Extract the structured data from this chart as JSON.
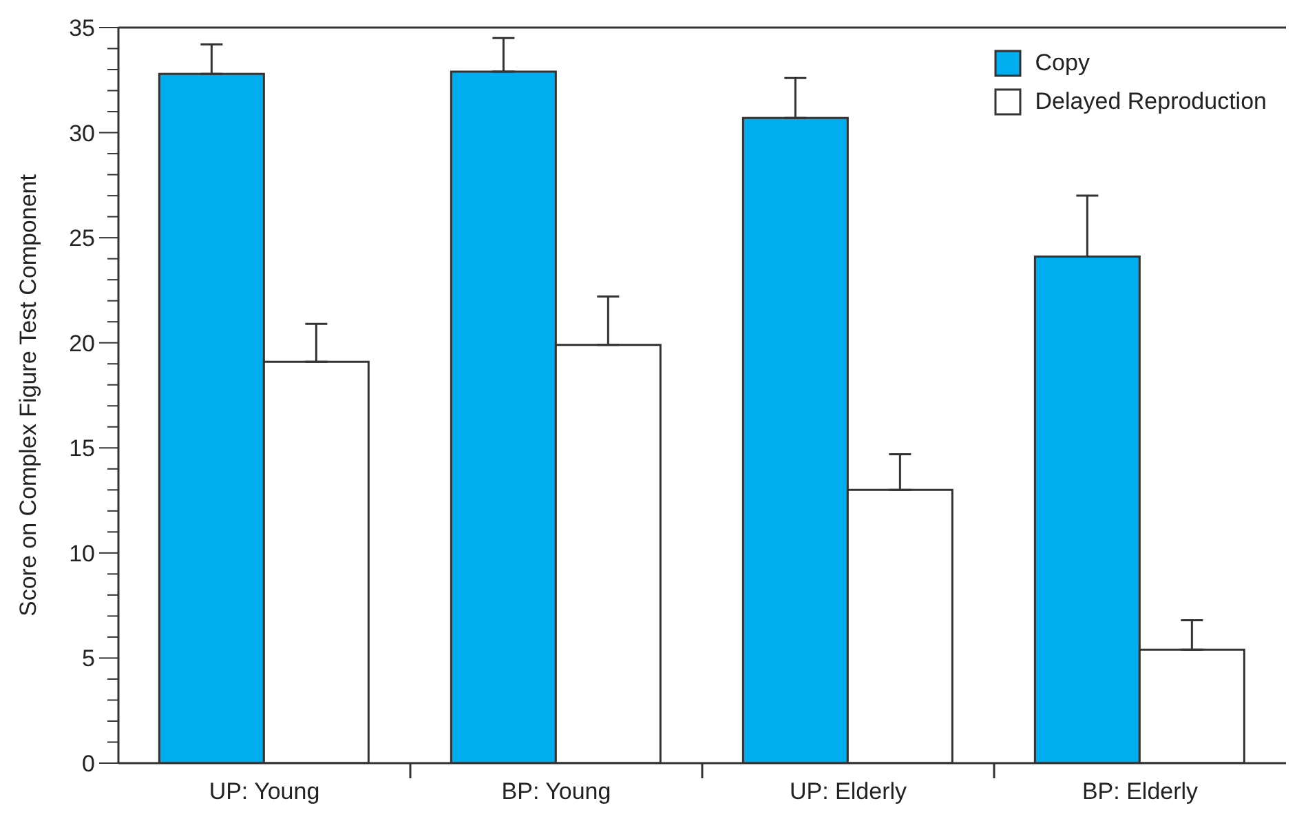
{
  "chart_data": {
    "type": "bar",
    "ylabel": "Score on Complex Figure Test Component",
    "categories": [
      "UP: Young",
      "BP: Young",
      "UP: Elderly",
      "BP: Elderly"
    ],
    "series": [
      {
        "name": "Copy",
        "color": "#00aeef",
        "values": [
          32.8,
          32.9,
          30.7,
          24.1
        ],
        "errors": [
          1.4,
          1.6,
          1.9,
          2.9
        ]
      },
      {
        "name": "Delayed Reproduction",
        "color": "#ffffff",
        "values": [
          19.1,
          19.9,
          13.0,
          5.4
        ],
        "errors": [
          1.8,
          2.3,
          1.7,
          1.4
        ]
      }
    ],
    "ylim": [
      0,
      35
    ],
    "yticks": [
      0,
      {
        "value": 1,
        "label": null
      },
      {
        "value": 2,
        "label": null
      },
      {
        "value": 3,
        "label": null
      },
      {
        "value": 4,
        "label": null
      },
      5,
      {
        "value": 6,
        "label": null
      },
      {
        "value": 7,
        "label": null
      },
      {
        "value": 8,
        "label": null
      },
      {
        "value": 9,
        "label": null
      },
      10,
      {
        "value": 11,
        "label": null
      },
      {
        "value": 12,
        "label": null
      },
      {
        "value": 13,
        "label": null
      },
      {
        "value": 14,
        "label": null
      },
      15,
      {
        "value": 16,
        "label": null
      },
      {
        "value": 17,
        "label": null
      },
      {
        "value": 18,
        "label": null
      },
      {
        "value": 19,
        "label": null
      },
      20,
      {
        "value": 21,
        "label": null
      },
      {
        "value": 22,
        "label": null
      },
      {
        "value": 23,
        "label": null
      },
      {
        "value": 24,
        "label": null
      },
      25,
      {
        "value": 26,
        "label": null
      },
      {
        "value": 27,
        "label": null
      },
      {
        "value": 28,
        "label": null
      },
      {
        "value": 29,
        "label": null
      },
      30,
      {
        "value": 31,
        "label": null
      },
      {
        "value": 32,
        "label": null
      },
      {
        "value": 33,
        "label": null
      },
      {
        "value": 34,
        "label": null
      },
      35
    ],
    "legend": "top right",
    "grid": false
  }
}
